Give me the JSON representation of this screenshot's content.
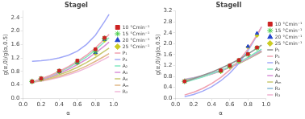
{
  "chart_data": [
    {
      "type": "line",
      "title": "StageI",
      "xlabel": "α",
      "ylabel": "g(α,0)/g(α,0.5)",
      "xlim": [
        0.0,
        1.0
      ],
      "ylim": [
        0.0,
        2.6
      ],
      "xticks": [
        {
          "value": 0.0,
          "label": "0.0"
        },
        0.2,
        0.4,
        0.6,
        0.8,
        {
          "value": 1.0,
          "label": "1.0"
        }
      ],
      "yticks": [
        {
          "value": 0.0,
          "label": "0.0"
        },
        0.4,
        0.8,
        1.2,
        1.6,
        {
          "value": 2.0,
          "label": "2.0"
        },
        2.4
      ],
      "grid": false,
      "legend": "right",
      "series": [
        {
          "name": "P₁",
          "type": "line",
          "color": "#f0a0b0",
          "x": [
            0.1,
            0.2,
            0.3,
            0.4,
            0.5,
            0.6,
            0.7,
            0.8,
            0.9,
            0.95
          ],
          "values": [
            0.48,
            0.58,
            0.68,
            0.8,
            0.94,
            1.1,
            1.28,
            1.5,
            1.76,
            1.9
          ]
        },
        {
          "name": "P₄",
          "type": "line",
          "color": "#a0a8f8",
          "x": [
            0.1,
            0.2,
            0.3,
            0.4,
            0.5,
            0.6,
            0.7,
            0.8,
            0.9,
            0.95
          ],
          "values": [
            1.1,
            1.12,
            1.15,
            1.2,
            1.28,
            1.4,
            1.6,
            1.88,
            2.28,
            2.5
          ]
        },
        {
          "name": "A₂",
          "type": "line",
          "color": "#80e8c0",
          "x": [
            0.1,
            0.2,
            0.3,
            0.4,
            0.5,
            0.6,
            0.7,
            0.8,
            0.9,
            0.95
          ],
          "values": [
            0.48,
            0.57,
            0.67,
            0.78,
            0.91,
            1.06,
            1.23,
            1.44,
            1.68,
            1.8
          ]
        },
        {
          "name": "A₃",
          "type": "line",
          "color": "#d890d8",
          "x": [
            0.1,
            0.2,
            0.3,
            0.4,
            0.5,
            0.6,
            0.7,
            0.8,
            0.9,
            0.95
          ],
          "values": [
            0.48,
            0.55,
            0.64,
            0.74,
            0.86,
            1.0,
            1.16,
            1.35,
            1.56,
            1.67
          ]
        },
        {
          "name": "A₄",
          "type": "line",
          "color": "#c8c870",
          "x": [
            0.1,
            0.2,
            0.3,
            0.4,
            0.5,
            0.6,
            0.7,
            0.8,
            0.9,
            0.95
          ],
          "values": [
            0.48,
            0.54,
            0.61,
            0.7,
            0.8,
            0.92,
            1.06,
            1.22,
            1.4,
            1.49
          ]
        },
        {
          "name": "Aₘ",
          "type": "line",
          "color": "#e0b888",
          "x": [
            0.1,
            0.2,
            0.3,
            0.4,
            0.5,
            0.6,
            0.7,
            0.8,
            0.9,
            0.95
          ],
          "values": [
            0.48,
            0.52,
            0.58,
            0.65,
            0.74,
            0.84,
            0.96,
            1.1,
            1.25,
            1.33
          ]
        },
        {
          "name": "R₂",
          "type": "line",
          "color": "#f0b8d8",
          "x": [
            0.1,
            0.2,
            0.3,
            0.4,
            0.5,
            0.6,
            0.7,
            0.8,
            0.9,
            0.95
          ],
          "values": [
            0.48,
            0.51,
            0.56,
            0.62,
            0.7,
            0.79,
            0.9,
            1.03,
            1.17,
            1.24
          ]
        },
        {
          "name": "10 °Cmin⁻¹",
          "type": "scatter",
          "marker": "square",
          "color": "#cc2222",
          "x": [
            0.1,
            0.2,
            0.4,
            0.6,
            0.8,
            0.9
          ],
          "values": [
            0.5,
            0.59,
            0.82,
            1.12,
            1.46,
            1.8
          ]
        },
        {
          "name": "15 °Cmin⁻¹",
          "type": "scatter",
          "marker": "star",
          "color": "#44cc44",
          "x": [
            0.1,
            0.2,
            0.4,
            0.6,
            0.8,
            0.9
          ],
          "values": [
            0.5,
            0.58,
            0.8,
            1.08,
            1.4,
            1.78
          ]
        },
        {
          "name": "20 °Cmin⁻¹",
          "type": "scatter",
          "marker": "triangle",
          "color": "#2244cc",
          "x": [
            0.1,
            0.2,
            0.4,
            0.6,
            0.8,
            0.9
          ],
          "values": [
            0.5,
            0.58,
            0.79,
            1.06,
            1.36,
            1.75
          ]
        },
        {
          "name": "25 °Cmin⁻¹",
          "type": "scatter",
          "marker": "diamond",
          "color": "#cccc22",
          "x": [
            0.1,
            0.2,
            0.4,
            0.6,
            0.8,
            0.9
          ],
          "values": [
            0.5,
            0.57,
            0.78,
            1.04,
            1.33,
            1.72
          ]
        }
      ]
    },
    {
      "type": "line",
      "title": "StageII",
      "xlabel": "α",
      "ylabel": "g(α,0)/g(α,0.5)",
      "xlim": [
        0.0,
        1.0
      ],
      "ylim": [
        0.0,
        3.2
      ],
      "xticks": [
        {
          "value": 0.0,
          "label": "0.0"
        },
        0.2,
        0.4,
        0.6,
        0.8,
        {
          "value": 1.0,
          "label": "1.0"
        }
      ],
      "yticks": [
        {
          "value": 0.0,
          "label": "0.0"
        },
        0.4,
        0.8,
        1.2,
        1.6,
        {
          "value": 2.0,
          "label": "2.0"
        },
        2.4,
        2.8,
        3.2
      ],
      "grid": false,
      "legend": "right",
      "series": [
        {
          "name": "P₁",
          "type": "line",
          "color": "#909090",
          "x": [
            0.1,
            0.2,
            0.3,
            0.4,
            0.5,
            0.6,
            0.7,
            0.8,
            0.9,
            0.95
          ],
          "values": [
            0.6,
            0.72,
            0.84,
            0.96,
            1.1,
            1.25,
            1.42,
            1.62,
            1.84,
            1.95
          ]
        },
        {
          "name": "P₃",
          "type": "line",
          "color": "#f0a0b0",
          "x": [
            0.1,
            0.2,
            0.3,
            0.4,
            0.5,
            0.6,
            0.7,
            0.8,
            0.9,
            0.95
          ],
          "values": [
            0.12,
            0.22,
            0.36,
            0.54,
            0.76,
            1.04,
            1.38,
            1.8,
            2.32,
            2.62
          ]
        },
        {
          "name": "P₄",
          "type": "line",
          "color": "#a0a8f8",
          "x": [
            0.1,
            0.2,
            0.3,
            0.4,
            0.5,
            0.6,
            0.7,
            0.8,
            0.9,
            0.95
          ],
          "values": [
            0.06,
            0.14,
            0.26,
            0.42,
            0.64,
            0.92,
            1.28,
            1.74,
            2.3,
            2.62
          ]
        },
        {
          "name": "A₂",
          "type": "line",
          "color": "#80e8c0",
          "x": [
            0.1,
            0.2,
            0.3,
            0.4,
            0.5,
            0.6,
            0.7,
            0.8,
            0.9,
            0.95
          ],
          "values": [
            0.58,
            0.68,
            0.78,
            0.9,
            1.02,
            1.16,
            1.32,
            1.5,
            1.7,
            1.8
          ]
        },
        {
          "name": "A₄",
          "type": "line",
          "color": "#d890d8",
          "x": [
            0.1,
            0.2,
            0.3,
            0.4,
            0.5,
            0.6,
            0.7,
            0.8,
            0.9,
            0.95
          ],
          "values": [
            0.62,
            0.7,
            0.79,
            0.89,
            1.0,
            1.14,
            1.29,
            1.46,
            1.65,
            1.75
          ]
        },
        {
          "name": "Aₘ",
          "type": "line",
          "color": "#c8c870",
          "x": [
            0.1,
            0.2,
            0.3,
            0.4,
            0.5,
            0.6,
            0.7,
            0.8,
            0.9,
            0.95
          ],
          "values": [
            0.65,
            0.72,
            0.8,
            0.89,
            1.0,
            1.13,
            1.27,
            1.44,
            1.62,
            1.72
          ]
        },
        {
          "name": "R₂",
          "type": "line",
          "color": "#88b8d8",
          "x": [
            0.1,
            0.2,
            0.3,
            0.4,
            0.5,
            0.6,
            0.7,
            0.8,
            0.9,
            0.95
          ],
          "values": [
            0.68,
            0.74,
            0.82,
            0.91,
            1.02,
            1.14,
            1.28,
            1.44,
            1.62,
            1.71
          ]
        },
        {
          "name": "R₃",
          "type": "line",
          "color": "#f0b0d0",
          "x": [
            0.1,
            0.2,
            0.3,
            0.4,
            0.5,
            0.6,
            0.7,
            0.8,
            0.9,
            0.95
          ],
          "values": [
            0.7,
            0.76,
            0.83,
            0.92,
            1.02,
            1.14,
            1.28,
            1.44,
            1.61,
            1.7
          ]
        },
        {
          "name": "10 °Cmin⁻¹",
          "type": "scatter",
          "marker": "square",
          "color": "#cc2222",
          "x": [
            0.1,
            0.5,
            0.6,
            0.7,
            0.8,
            0.9
          ],
          "values": [
            0.62,
            1.02,
            1.2,
            1.4,
            1.62,
            1.86
          ]
        },
        {
          "name": "15 °Cmin⁻¹",
          "type": "scatter",
          "marker": "star",
          "color": "#44cc44",
          "x": [
            0.1,
            0.5,
            0.6,
            0.7,
            0.8,
            0.9
          ],
          "values": [
            0.62,
            1.0,
            1.18,
            1.38,
            1.6,
            1.84
          ]
        },
        {
          "name": "20 °Cmin⁻¹",
          "type": "scatter",
          "marker": "triangle",
          "color": "#2244cc",
          "x": [
            0.5,
            0.6,
            0.7,
            0.8,
            0.9
          ],
          "values": [
            1.0,
            1.18,
            1.38,
            1.9,
            2.38
          ]
        },
        {
          "name": "25 °Cmin⁻¹",
          "type": "scatter",
          "marker": "diamond",
          "color": "#cccc22",
          "x": [
            0.5,
            0.6,
            0.7,
            0.8,
            0.9
          ],
          "values": [
            0.98,
            1.15,
            1.35,
            1.88,
            2.3
          ]
        }
      ]
    }
  ]
}
